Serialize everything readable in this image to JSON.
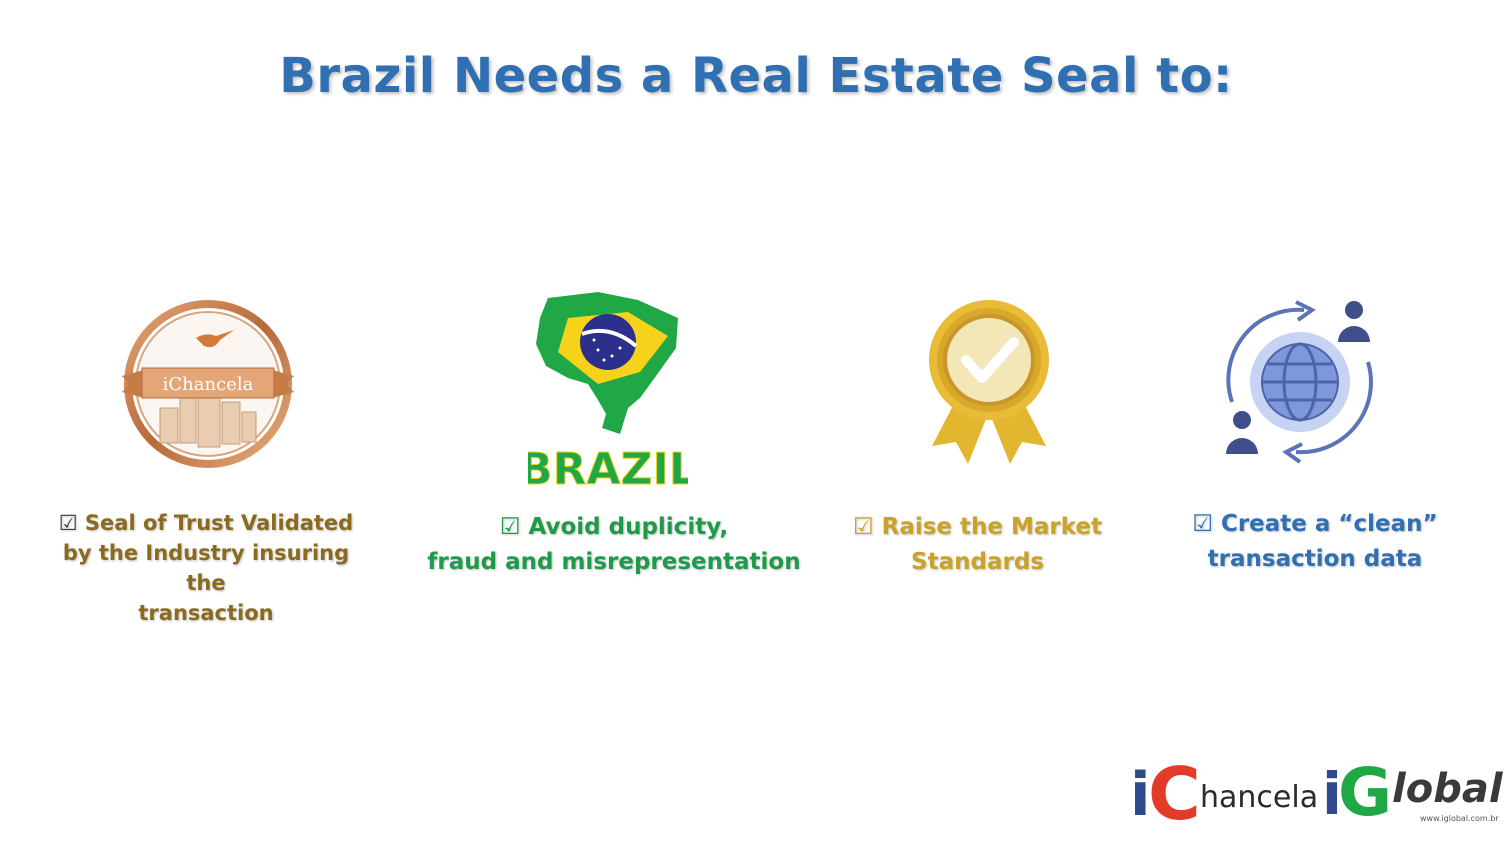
{
  "slide": {
    "title": "Brazil Needs a Real Estate Seal to:"
  },
  "items": [
    {
      "icon": "ichancela-seal-icon",
      "seal_text": "iChancela",
      "check": "☑",
      "line1": "Seal of Trust Validated",
      "line2": "by the Industry insuring the",
      "line3": "transaction",
      "color": "#8a6a1e"
    },
    {
      "icon": "brazil-map-icon",
      "map_word": "BRAZIL",
      "check": "☑",
      "line1": "Avoid duplicity,",
      "line2": "fraud and misrepresentation",
      "color": "#1f9a4a"
    },
    {
      "icon": "award-ribbon-icon",
      "check": "☑",
      "line1": "Raise the Market",
      "line2": "Standards",
      "color": "#c9a227"
    },
    {
      "icon": "global-exchange-icon",
      "check": "☑",
      "line1": "Create a “clean”",
      "line2": "transaction data",
      "color": "#2f6fb2"
    }
  ],
  "footer": {
    "logo1_prefix": "i",
    "logo1_c": "C",
    "logo1_text": "hancela",
    "logo2_prefix": "i",
    "logo2_g": "G",
    "logo2_text": "lobal",
    "logo2_url": "www.iglobal.com.br"
  }
}
